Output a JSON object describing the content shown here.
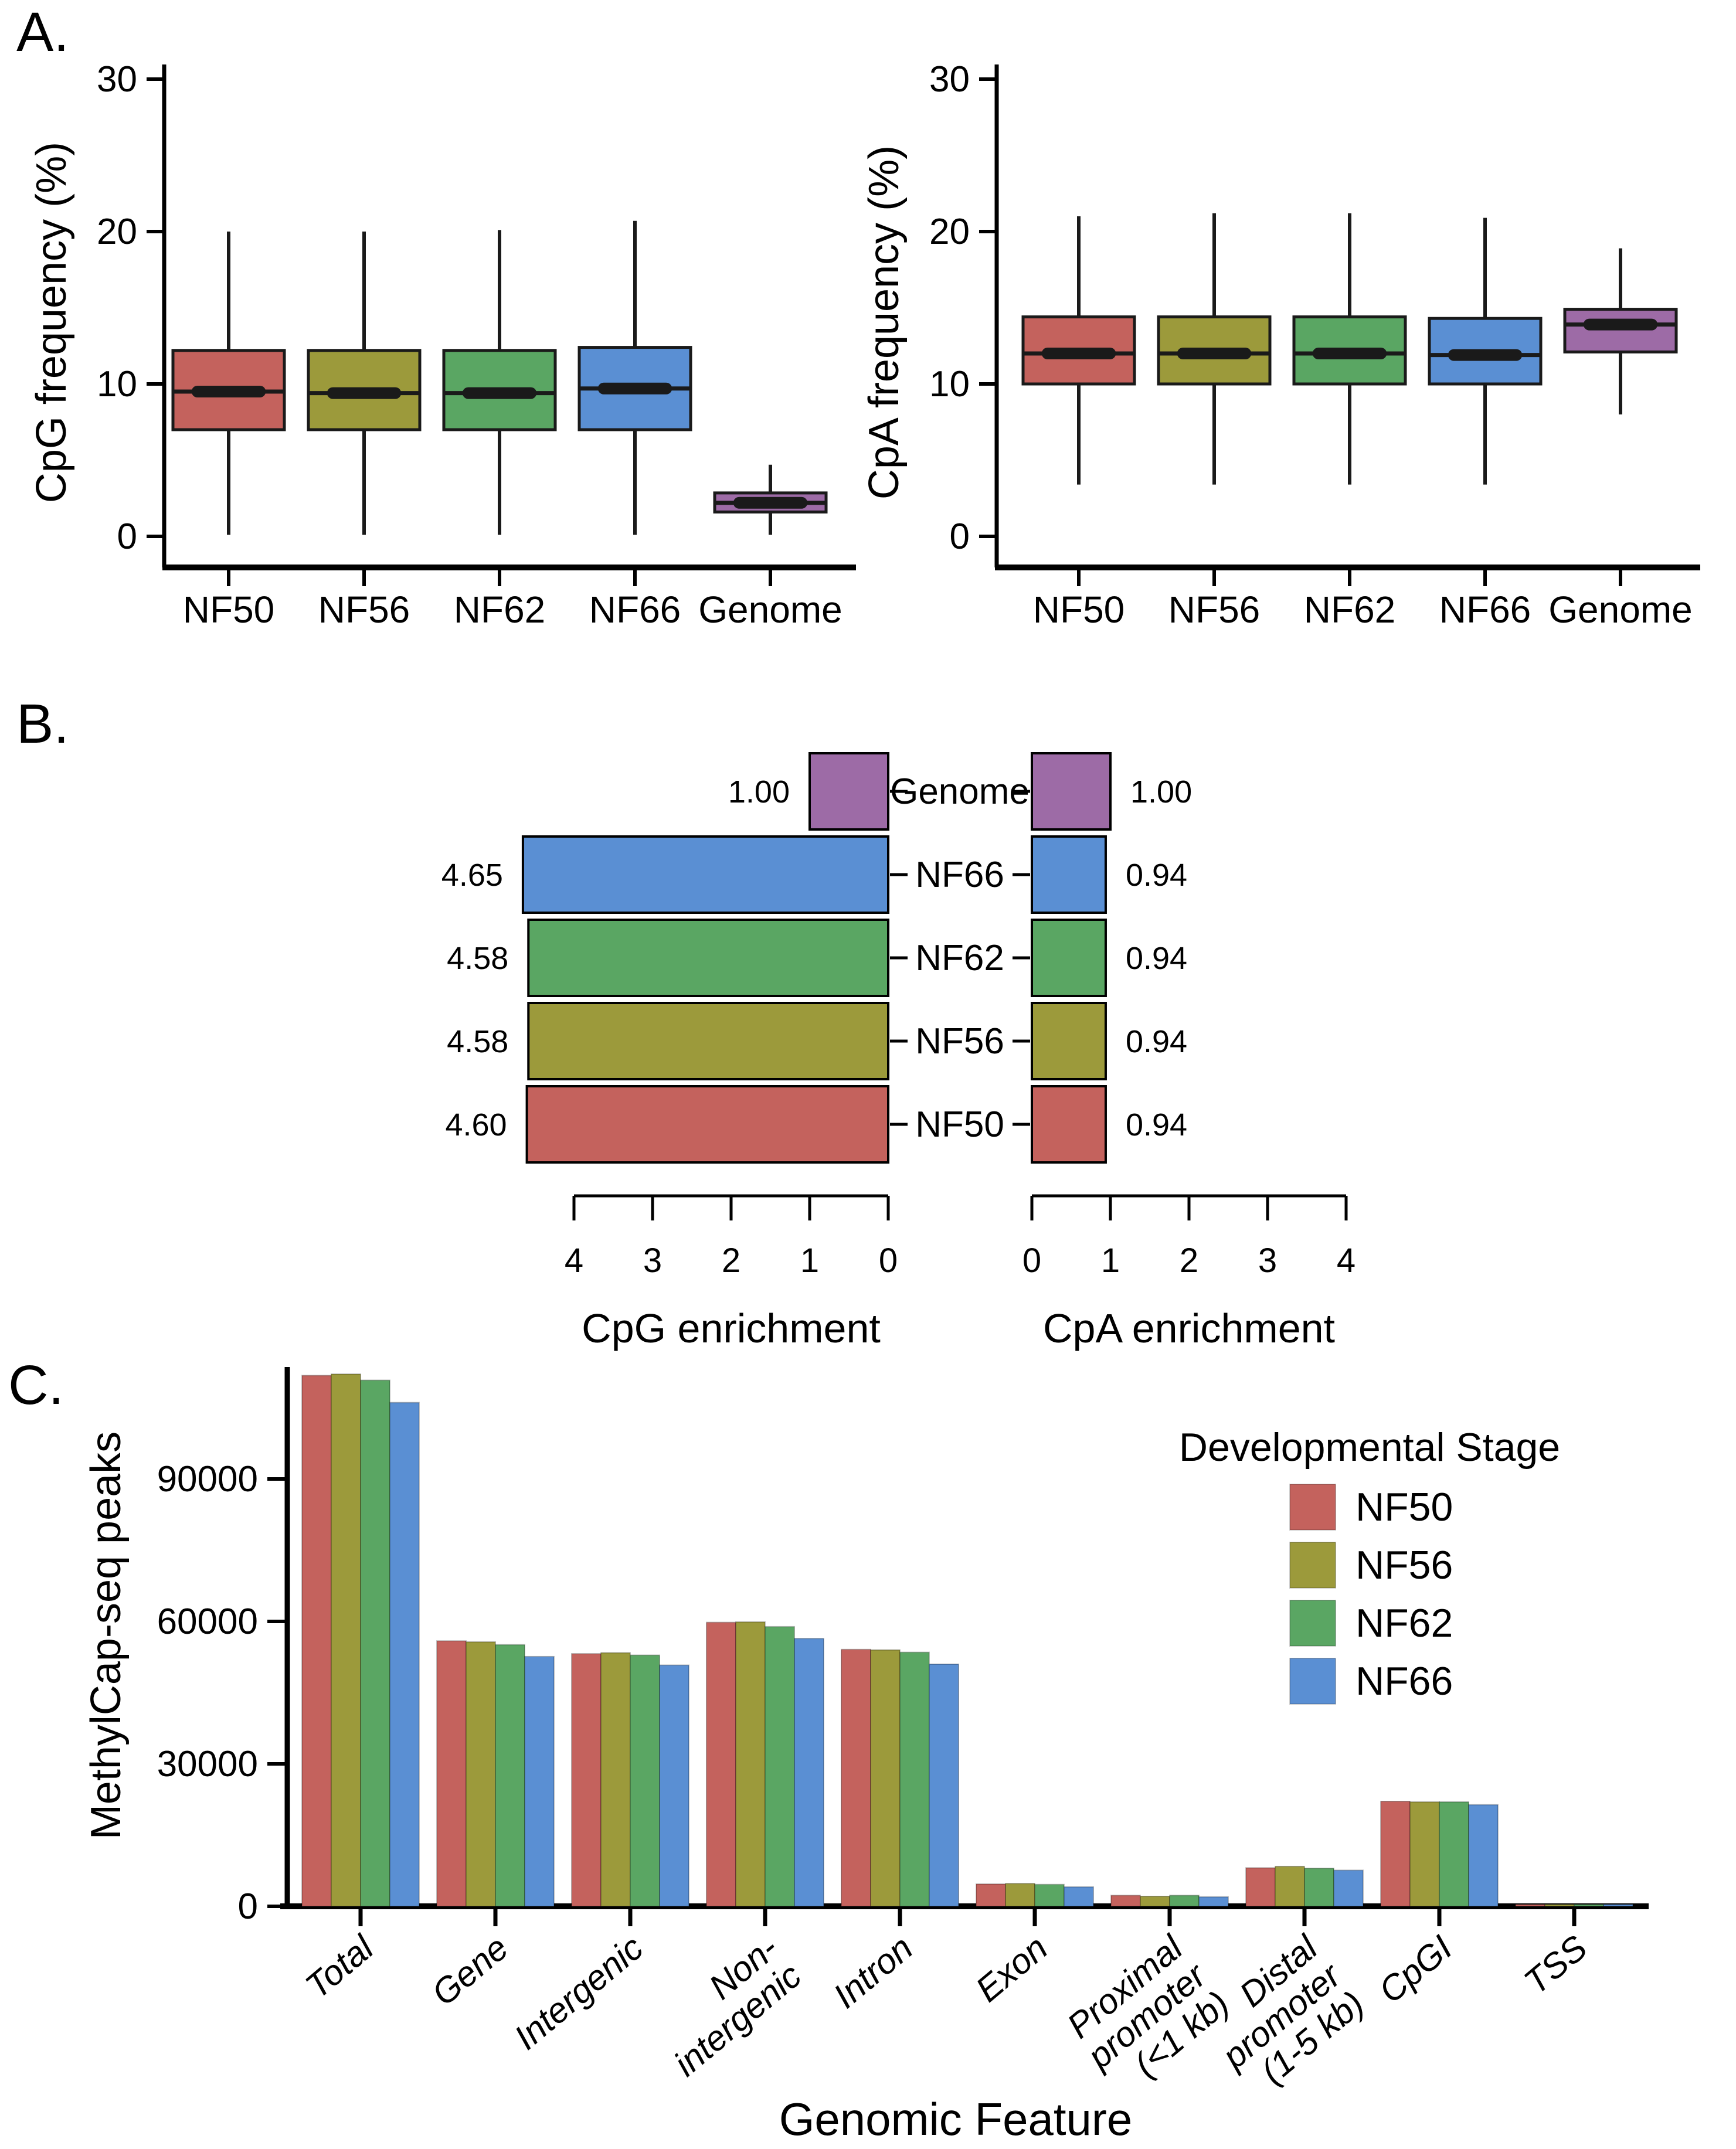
{
  "page": {
    "background": "#ffffff"
  },
  "figure": {
    "panel_a_label": "A.",
    "panel_b_label": "B.",
    "panel_c_label": "C."
  },
  "colors": {
    "NF50": "#C4625D",
    "NF56": "#9C9A3B",
    "NF62": "#5AA663",
    "NF66": "#5A8FD3",
    "Genome": "#9D6BA6",
    "box_stroke": "#1A1A1A",
    "axis": "#000000"
  },
  "chart_data": [
    {
      "id": "cpg_frequency",
      "type": "boxplot",
      "ylabel": "CpG frequency (%)",
      "ylim": [
        0,
        31
      ],
      "yticks": [
        0,
        10,
        20,
        30
      ],
      "boxes": [
        {
          "label": "NF50",
          "color": "NF50",
          "whisker_low": 0.1,
          "q1": 7.0,
          "median": 9.5,
          "q3": 12.2,
          "whisker_high": 20.0
        },
        {
          "label": "NF56",
          "color": "NF56",
          "whisker_low": 0.1,
          "q1": 7.0,
          "median": 9.4,
          "q3": 12.2,
          "whisker_high": 20.0
        },
        {
          "label": "NF62",
          "color": "NF62",
          "whisker_low": 0.1,
          "q1": 7.0,
          "median": 9.4,
          "q3": 12.2,
          "whisker_high": 20.1
        },
        {
          "label": "NF66",
          "color": "NF66",
          "whisker_low": 0.1,
          "q1": 7.0,
          "median": 9.7,
          "q3": 12.4,
          "whisker_high": 20.7
        },
        {
          "label": "Genome",
          "color": "Genome",
          "whisker_low": 0.1,
          "q1": 1.6,
          "median": 2.2,
          "q3": 2.85,
          "whisker_high": 4.7
        }
      ]
    },
    {
      "id": "cpa_frequency",
      "type": "boxplot",
      "ylabel": "CpA frequency (%)",
      "ylim": [
        0,
        31
      ],
      "yticks": [
        0,
        10,
        20,
        30
      ],
      "boxes": [
        {
          "label": "NF50",
          "color": "NF50",
          "whisker_low": 3.4,
          "q1": 10.0,
          "median": 12.0,
          "q3": 14.4,
          "whisker_high": 21.0
        },
        {
          "label": "NF56",
          "color": "NF56",
          "whisker_low": 3.4,
          "q1": 10.0,
          "median": 12.0,
          "q3": 14.4,
          "whisker_high": 21.2
        },
        {
          "label": "NF62",
          "color": "NF62",
          "whisker_low": 3.4,
          "q1": 10.0,
          "median": 12.0,
          "q3": 14.4,
          "whisker_high": 21.2
        },
        {
          "label": "NF66",
          "color": "NF66",
          "whisker_low": 3.4,
          "q1": 10.0,
          "median": 11.9,
          "q3": 14.3,
          "whisker_high": 20.9
        },
        {
          "label": "Genome",
          "color": "Genome",
          "whisker_low": 8.0,
          "q1": 12.1,
          "median": 13.9,
          "q3": 14.9,
          "whisker_high": 18.9
        }
      ]
    },
    {
      "id": "cpg_enrichment",
      "type": "bar",
      "orientation": "horizontal",
      "direction": "left",
      "xlabel": "CpG enrichment",
      "xlim": [
        0,
        4
      ],
      "xticks": [
        4,
        3,
        2,
        1,
        0
      ],
      "categories": [
        "Genome",
        "NF66",
        "NF62",
        "NF56",
        "NF50"
      ],
      "values": [
        1.0,
        4.65,
        4.58,
        4.58,
        4.6
      ],
      "value_labels": [
        "1.00",
        "4.65",
        "4.58",
        "4.58",
        "4.60"
      ]
    },
    {
      "id": "cpa_enrichment",
      "type": "bar",
      "orientation": "horizontal",
      "direction": "right",
      "xlabel": "CpA enrichment",
      "xlim": [
        0,
        4
      ],
      "xticks": [
        0,
        1,
        2,
        3,
        4
      ],
      "categories": [
        "Genome",
        "NF66",
        "NF62",
        "NF56",
        "NF50"
      ],
      "values": [
        1.0,
        0.94,
        0.94,
        0.94,
        0.94
      ],
      "value_labels": [
        "1.00",
        "0.94",
        "0.94",
        "0.94",
        "0.94"
      ]
    },
    {
      "id": "methylcap_peaks",
      "type": "bar",
      "grouped": true,
      "xlabel": "Genomic Feature",
      "ylabel": "MethylCap-seq peaks",
      "ylim": [
        0,
        115000
      ],
      "yticks": [
        0,
        30000,
        60000,
        90000
      ],
      "legend_title": "Developmental Stage",
      "legend_position": "top-right",
      "categories": [
        "Total",
        "Gene",
        "Intergenic",
        "Non-\nintergenic",
        "Intron",
        "Exon",
        "Proximal\npromoter\n(<1 kb)",
        "Distal\npromoter\n(1-5 kb)",
        "CpGI",
        "TSS"
      ],
      "series": [
        {
          "name": "NF50",
          "values": [
            111800,
            55900,
            53200,
            59800,
            54100,
            4700,
            2300,
            8100,
            22100,
            400
          ]
        },
        {
          "name": "NF56",
          "values": [
            112100,
            55700,
            53400,
            59900,
            54000,
            4800,
            2100,
            8400,
            22000,
            400
          ]
        },
        {
          "name": "NF62",
          "values": [
            110800,
            55100,
            52900,
            58900,
            53500,
            4600,
            2300,
            8000,
            22000,
            400
          ]
        },
        {
          "name": "NF66",
          "values": [
            106100,
            52600,
            50800,
            56400,
            51000,
            4100,
            2000,
            7600,
            21400,
            400
          ]
        }
      ]
    }
  ]
}
